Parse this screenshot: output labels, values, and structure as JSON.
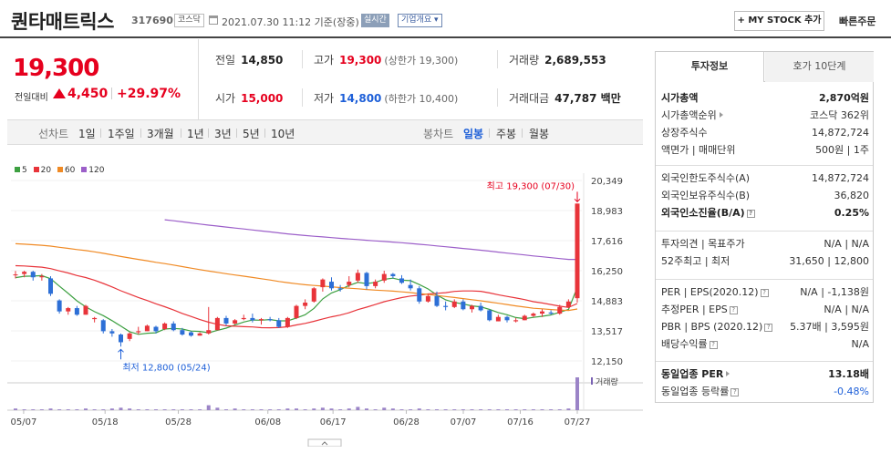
{
  "header": {
    "title": "퀀타매트릭스",
    "code": "317690",
    "market_badge": "코스닥",
    "datetime": "2021.07.30 11:12 기준(장중)",
    "realtime_badge": "실시간",
    "company_info": "기업개요",
    "mystock_label": "+ MY STOCK 추가",
    "quick_order": "빠른주문"
  },
  "price": {
    "current": "19,300",
    "change_label": "전일대비",
    "change_value": "4,450",
    "change_percent": "+29.97%",
    "direction": "up"
  },
  "quote": {
    "prev_label": "전일",
    "prev": "14,850",
    "high_label": "고가",
    "high": "19,300",
    "high_limit": "(상한가 19,300)",
    "volume_label": "거래량",
    "volume": "2,689,553",
    "open_label": "시가",
    "open": "15,000",
    "low_label": "저가",
    "low": "14,800",
    "low_limit": "(하한가 10,400)",
    "amount_label": "거래대금",
    "amount": "47,787 백만"
  },
  "tabs": {
    "line_label": "선차트",
    "line_periods": [
      "1일",
      "1주일",
      "3개월",
      "1년",
      "3년",
      "5년",
      "10년"
    ],
    "candle_label": "봉차트",
    "candle_periods": [
      "일봉",
      "주봉",
      "월봉"
    ],
    "active": "일봉"
  },
  "chart_data": {
    "type": "candlestick",
    "legend": [
      "5",
      "20",
      "60",
      "120"
    ],
    "legend_colors": [
      "#3da041",
      "#e8343a",
      "#f08a24",
      "#9c5fc9"
    ],
    "up_color": "#e8343a",
    "down_color": "#2d6fd6",
    "y_ticks": [
      "20,349",
      "18,983",
      "17,616",
      "16,250",
      "14,883",
      "13,517",
      "12,150"
    ],
    "y_range": [
      12150,
      20349
    ],
    "x_ticks": [
      "05/07",
      "05/18",
      "05/28",
      "06/08",
      "06/17",
      "06/28",
      "07/07",
      "07/16",
      "07/27"
    ],
    "max_label": "최고 19,300 (07/30)",
    "min_label": "최저 12,800 (05/24)",
    "volume_label": "거래량",
    "candles": [
      [
        16080,
        16240,
        15900,
        16080
      ],
      [
        16100,
        16250,
        15950,
        16200
      ],
      [
        16200,
        16250,
        15800,
        15950
      ],
      [
        15950,
        16100,
        15800,
        16000
      ],
      [
        15900,
        16000,
        15100,
        15200
      ],
      [
        14900,
        14950,
        14300,
        14400
      ],
      [
        14400,
        14600,
        14250,
        14550
      ],
      [
        14550,
        14650,
        14200,
        14250
      ],
      [
        14250,
        14700,
        14250,
        14650
      ],
      [
        14050,
        14150,
        13900,
        14100
      ],
      [
        14000,
        14050,
        13400,
        13500
      ],
      [
        13500,
        13600,
        13250,
        13400
      ],
      [
        13350,
        13400,
        12800,
        13000
      ],
      [
        13150,
        13450,
        13050,
        13400
      ],
      [
        13450,
        13700,
        13350,
        13500
      ],
      [
        13500,
        13800,
        13500,
        13750
      ],
      [
        13700,
        13750,
        13400,
        13500
      ],
      [
        13600,
        13900,
        13550,
        13850
      ],
      [
        13850,
        13950,
        13500,
        13550
      ],
      [
        13550,
        13650,
        13300,
        13350
      ],
      [
        13450,
        13500,
        13250,
        13300
      ],
      [
        13300,
        13450,
        13300,
        13400
      ],
      [
        13400,
        14600,
        13350,
        13550
      ],
      [
        13550,
        14150,
        13550,
        14100
      ],
      [
        14100,
        14200,
        13750,
        13850
      ],
      [
        13850,
        14050,
        13800,
        14000
      ],
      [
        14050,
        14250,
        14000,
        14100
      ],
      [
        14100,
        14300,
        13900,
        14000
      ],
      [
        14000,
        14100,
        13800,
        14050
      ],
      [
        14050,
        14150,
        13950,
        14000
      ],
      [
        14000,
        14100,
        13650,
        13700
      ],
      [
        13700,
        14150,
        13650,
        14100
      ],
      [
        14100,
        14700,
        14050,
        14650
      ],
      [
        14650,
        14950,
        14500,
        14800
      ],
      [
        14850,
        15500,
        14800,
        15450
      ],
      [
        15500,
        15900,
        15300,
        15850
      ],
      [
        15750,
        15950,
        15350,
        15450
      ],
      [
        15450,
        15600,
        15300,
        15400
      ],
      [
        15600,
        16000,
        15500,
        15750
      ],
      [
        15800,
        16300,
        15700,
        16150
      ],
      [
        16150,
        16200,
        15400,
        15550
      ],
      [
        15550,
        15850,
        15450,
        15750
      ],
      [
        15800,
        16250,
        15700,
        16100
      ],
      [
        16100,
        16150,
        15900,
        16000
      ],
      [
        15900,
        16050,
        15650,
        15700
      ],
      [
        15600,
        15850,
        15350,
        15450
      ],
      [
        15450,
        15550,
        14750,
        14850
      ],
      [
        14850,
        15200,
        14800,
        15100
      ],
      [
        15100,
        15300,
        14600,
        14650
      ],
      [
        14650,
        14850,
        14450,
        14600
      ],
      [
        14600,
        14950,
        14550,
        14850
      ],
      [
        14850,
        14950,
        14450,
        14500
      ],
      [
        14500,
        14700,
        14350,
        14650
      ],
      [
        14650,
        14800,
        14400,
        14450
      ],
      [
        14450,
        14500,
        13950,
        14000
      ],
      [
        13950,
        14250,
        13950,
        14150
      ],
      [
        14150,
        14200,
        13900,
        14000
      ],
      [
        13950,
        14100,
        13900,
        14000
      ],
      [
        14000,
        14250,
        14000,
        14200
      ],
      [
        14200,
        14350,
        14150,
        14300
      ],
      [
        14300,
        14500,
        14150,
        14400
      ],
      [
        14350,
        14450,
        14250,
        14300
      ],
      [
        14300,
        14700,
        14250,
        14600
      ],
      [
        14600,
        14950,
        14550,
        14850
      ],
      [
        15000,
        19300,
        14800,
        19300
      ]
    ],
    "volumes": [
      2,
      1,
      1,
      1,
      2,
      1,
      1,
      1,
      2,
      1,
      1,
      2,
      3,
      2,
      1,
      1,
      1,
      1,
      1,
      1,
      1,
      1,
      6,
      3,
      1,
      2,
      1,
      1,
      1,
      1,
      1,
      2,
      2,
      1,
      2,
      3,
      2,
      1,
      2,
      4,
      2,
      1,
      3,
      2,
      1,
      1,
      2,
      1,
      1,
      1,
      1,
      1,
      1,
      1,
      1,
      1,
      1,
      1,
      1,
      1,
      1,
      1,
      1,
      2,
      40
    ]
  },
  "invest": {
    "tab_active": "투자정보",
    "tab_other": "호가 10단계",
    "rows1": [
      {
        "k": "시가총액",
        "v": "2,870억원",
        "kb": true,
        "vb": true
      },
      {
        "k": "시가총액순위",
        "v": "코스닥 362위",
        "arrow": true
      },
      {
        "k": "상장주식수",
        "v": "14,872,724"
      },
      {
        "k": "액면가 | 매매단위",
        "v": "500원 | 1주"
      }
    ],
    "rows2": [
      {
        "k": "외국인한도주식수(A)",
        "v": "14,872,724"
      },
      {
        "k": "외국인보유주식수(B)",
        "v": "36,820"
      },
      {
        "k": "외국인소진율(B/A)",
        "v": "0.25%",
        "kb": true,
        "vb": true,
        "help": true
      }
    ],
    "rows3": [
      {
        "k": "투자의견 | 목표주가",
        "v": "N/A | N/A"
      },
      {
        "k": "52주최고 | 최저",
        "v": "31,650 | 12,800"
      }
    ],
    "rows4": [
      {
        "k": "PER | EPS(2020.12)",
        "v": "N/A | -1,138원",
        "help": true
      },
      {
        "k": "추정PER | EPS",
        "v": "N/A | N/A",
        "help": true
      },
      {
        "k": "PBR | BPS (2020.12)",
        "v": "5.37배 | 3,595원",
        "help": true
      },
      {
        "k": "배당수익률",
        "v": "N/A",
        "help": true
      }
    ],
    "rows5": [
      {
        "k": "동일업종 PER",
        "v": "13.18배",
        "kb": true,
        "vb": true,
        "arrow": true
      },
      {
        "k": "동일업종 등락률",
        "v": "-0.48%",
        "help": true,
        "blue": true
      }
    ]
  }
}
